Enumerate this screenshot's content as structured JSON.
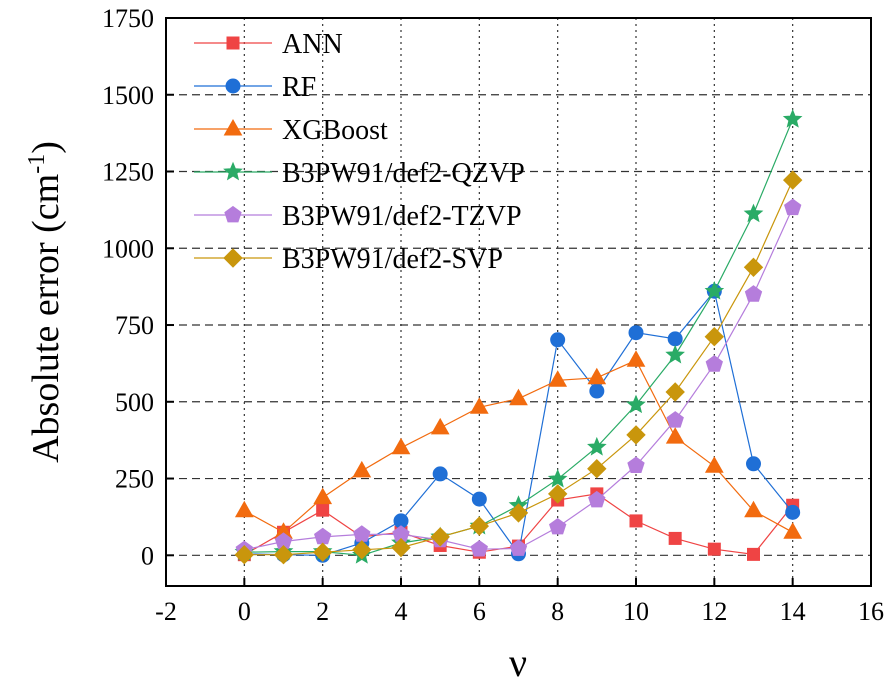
{
  "chart_data": {
    "type": "line",
    "xlabel": "ν",
    "ylabel": "Absolute error (cm",
    "ylabel_sup": "-1",
    "ylabel_close": ")",
    "xlim": [
      -2,
      16
    ],
    "ylim": [
      -100,
      1750
    ],
    "xticks": [
      -2,
      0,
      2,
      4,
      6,
      8,
      10,
      12,
      14,
      16
    ],
    "yticks": [
      0,
      250,
      500,
      750,
      1000,
      1250,
      1500,
      1750
    ],
    "grid": "dotted vertical, dashed horizontal",
    "legend_position": "top-left",
    "x": [
      0,
      1,
      2,
      3,
      4,
      5,
      6,
      7,
      8,
      9,
      10,
      11,
      12,
      13,
      14
    ],
    "series": [
      {
        "name": "ANN",
        "color": "#ef4444",
        "marker": "square",
        "values": [
          2,
          75,
          147,
          60,
          75,
          32,
          10,
          30,
          180,
          200,
          112,
          55,
          20,
          3,
          163
        ]
      },
      {
        "name": "RF",
        "color": "#1f6fd6",
        "marker": "circle",
        "values": [
          5,
          2,
          0,
          40,
          112,
          265,
          183,
          5,
          702,
          535,
          725,
          705,
          860,
          298,
          140
        ]
      },
      {
        "name": "XGBoost",
        "color": "#f26b0f",
        "marker": "triangle",
        "values": [
          145,
          75,
          188,
          275,
          350,
          415,
          482,
          510,
          570,
          578,
          635,
          385,
          290,
          145,
          75
        ]
      },
      {
        "name": "B3PW91/def2-QZVP",
        "color": "#2aab66",
        "marker": "star",
        "values": [
          10,
          12,
          12,
          0,
          40,
          60,
          95,
          162,
          248,
          352,
          490,
          652,
          860,
          1112,
          1420
        ]
      },
      {
        "name": "B3PW91/def2-TZVP",
        "color": "#b57ddc",
        "marker": "pentagon",
        "values": [
          18,
          45,
          60,
          68,
          68,
          50,
          20,
          22,
          92,
          180,
          292,
          440,
          622,
          850,
          1132
        ]
      },
      {
        "name": "B3PW91/def2-SVP",
        "color": "#c9960c",
        "marker": "diamond",
        "values": [
          2,
          2,
          10,
          18,
          25,
          60,
          95,
          138,
          200,
          282,
          392,
          532,
          712,
          938,
          1222
        ]
      }
    ]
  }
}
